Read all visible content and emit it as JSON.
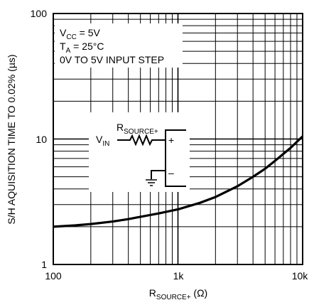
{
  "chart_data": {
    "type": "line",
    "xscale": "log",
    "yscale": "log",
    "xlim": [
      100,
      10000
    ],
    "ylim": [
      1,
      100
    ],
    "xticks": [
      "100",
      "1k",
      "10k"
    ],
    "yticks": [
      "100",
      "10",
      "1"
    ],
    "xlabel": {
      "main": "R",
      "sub": "SOURCE+",
      "unit": " (Ω)"
    },
    "ylabel": "S/H AQUISITION TIME TO 0.02% (µs)",
    "grid": true,
    "series": [
      {
        "points": [
          [
            100,
            2.0
          ],
          [
            150,
            2.05
          ],
          [
            200,
            2.1
          ],
          [
            300,
            2.2
          ],
          [
            400,
            2.3
          ],
          [
            500,
            2.4
          ],
          [
            700,
            2.55
          ],
          [
            1000,
            2.75
          ],
          [
            1500,
            3.1
          ],
          [
            2000,
            3.45
          ],
          [
            3000,
            4.2
          ],
          [
            4000,
            5.0
          ],
          [
            5000,
            5.8
          ],
          [
            6000,
            6.7
          ],
          [
            7000,
            7.6
          ],
          [
            8000,
            8.5
          ],
          [
            9000,
            9.5
          ],
          [
            10000,
            10.5
          ]
        ]
      }
    ],
    "annotations": {
      "vcc": {
        "main": "V",
        "sub": "CC",
        "rest": " = 5V"
      },
      "ta": {
        "main": "T",
        "sub": "A",
        "rest": " = 25°C"
      },
      "step": "0V TO 5V INPUT STEP"
    },
    "schematic": {
      "vin": {
        "main": "V",
        "sub": "IN"
      },
      "rsource": {
        "main": "R",
        "sub": "SOURCE+"
      },
      "plus": "+",
      "minus": "–"
    }
  }
}
